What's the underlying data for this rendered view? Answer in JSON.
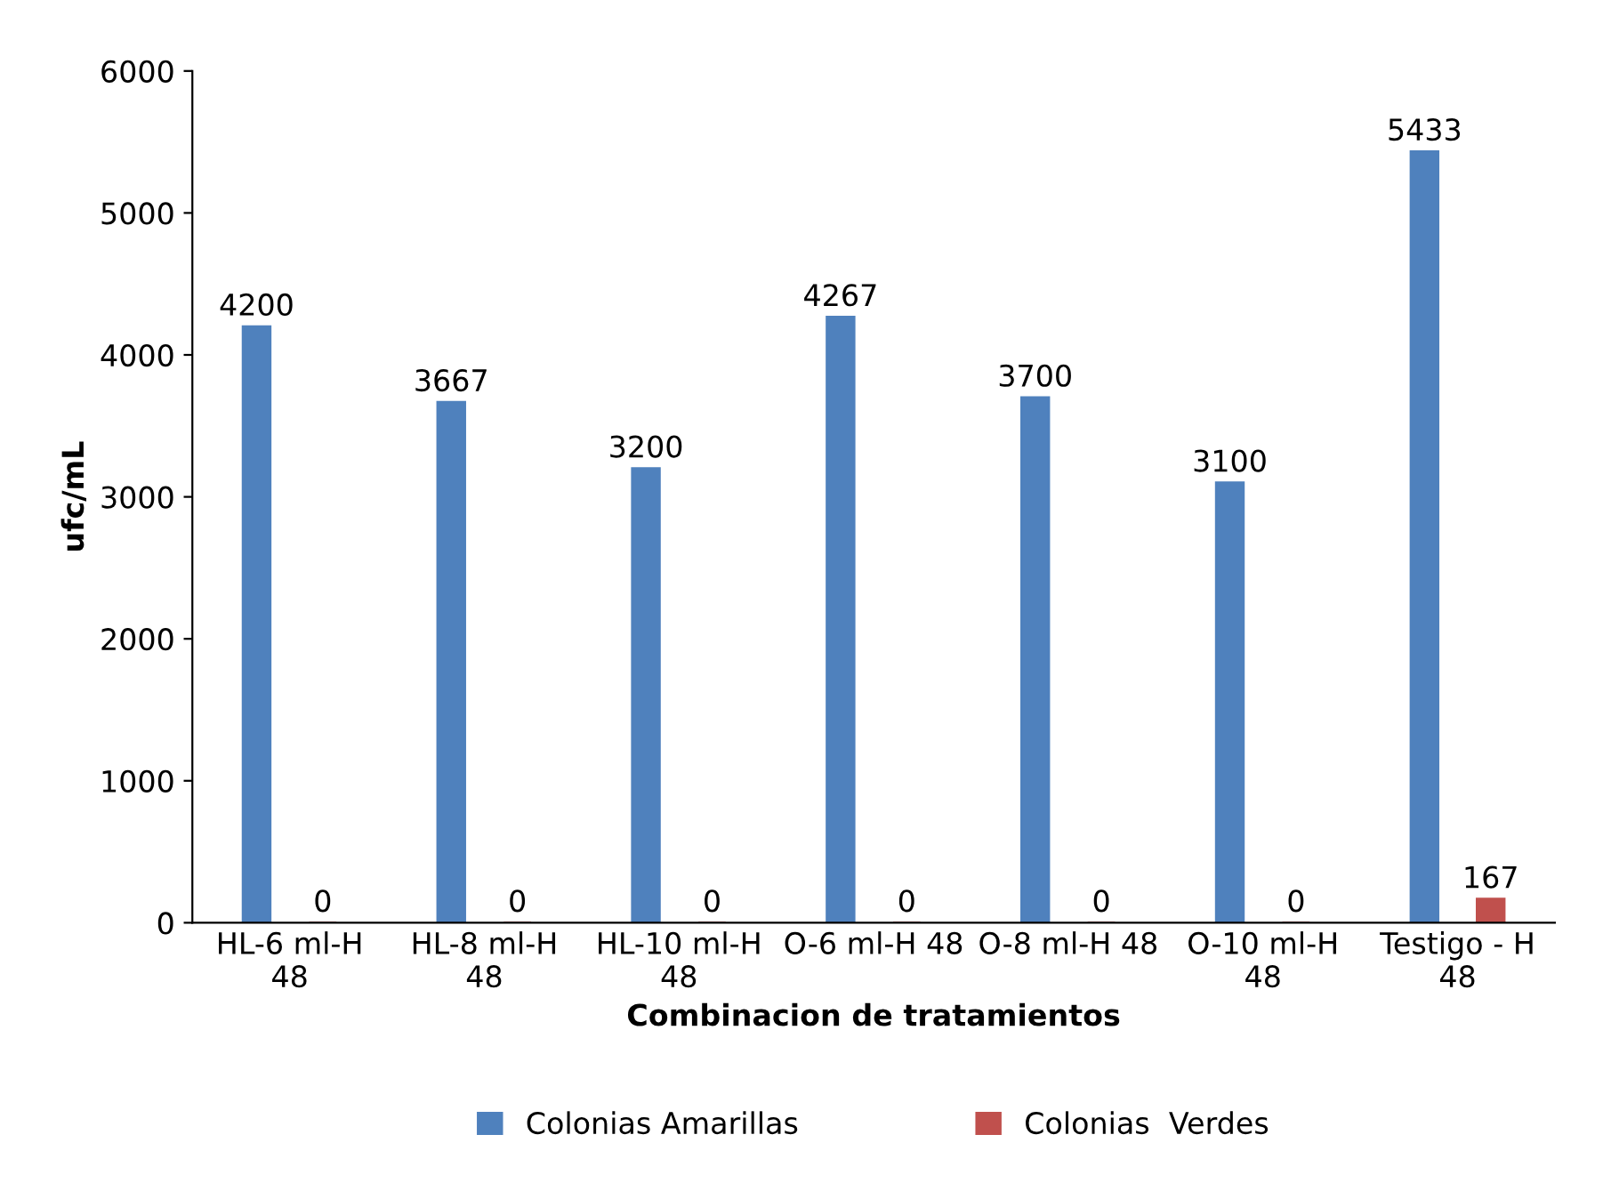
{
  "chart_data": {
    "type": "bar",
    "xlabel": "Combinacion de tratamientos",
    "ylabel": "ufc/mL",
    "categories": [
      "HL-6 ml-H\n48",
      "HL-8 ml-H\n48",
      "HL-10 ml-H\n48",
      "O-6 ml-H 48",
      "O-8 ml-H 48",
      "O-10 ml-H\n48",
      "Testigo - H\n48"
    ],
    "series": [
      {
        "name": "Colonias Amarillas",
        "color": "#4f81bd",
        "values": [
          4200,
          3667,
          3200,
          4267,
          3700,
          3100,
          5433
        ]
      },
      {
        "name": "Colonias  Verdes",
        "color": "#c0504d",
        "values": [
          0,
          0,
          0,
          0,
          0,
          0,
          167
        ]
      }
    ],
    "ylim": [
      0,
      6000
    ],
    "yticks": [
      0,
      1000,
      2000,
      3000,
      4000,
      5000,
      6000
    ],
    "data_labels": true,
    "grid": false,
    "legend": "bottom"
  }
}
